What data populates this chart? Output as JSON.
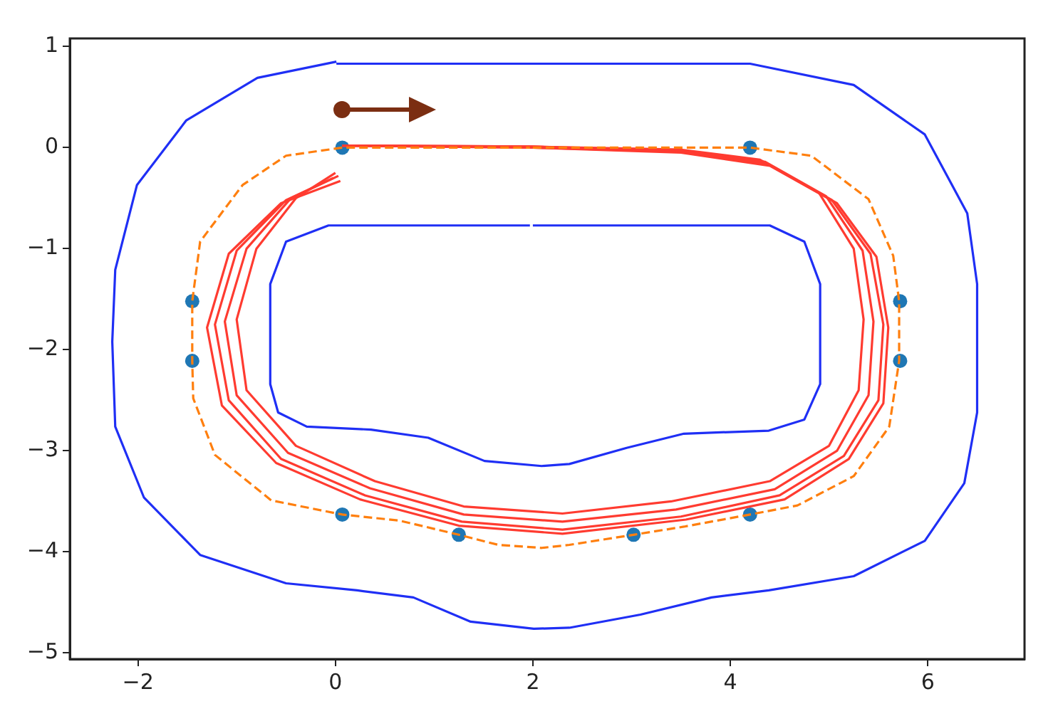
{
  "chart_data": {
    "type": "line",
    "xlim": [
      -2.69,
      6.98
    ],
    "ylim": [
      -5.06,
      1.08
    ],
    "xticks": [
      {
        "value": -2,
        "label": "−2"
      },
      0,
      2,
      4,
      6
    ],
    "yticks": [
      1,
      0,
      {
        "value": -1,
        "label": "−1"
      },
      {
        "value": -2,
        "label": "−2"
      },
      {
        "value": -3,
        "label": "−3"
      },
      {
        "value": -4,
        "label": "−4"
      },
      {
        "value": -5,
        "label": "−5"
      }
    ],
    "grid": false,
    "legend": false,
    "series": [
      {
        "type": "line",
        "color": "#1f2ff5",
        "marker": "none",
        "line_style": "solid",
        "x": [
          0.01,
          4.2,
          5.25,
          5.97,
          6.4,
          6.5,
          6.5,
          6.37,
          5.97,
          5.25,
          4.39,
          3.81,
          3.09,
          2.37,
          2.01,
          1.37,
          0.79,
          0.22,
          -0.5,
          -1.37,
          -1.94,
          -2.23,
          -2.26,
          -2.23,
          -2.01,
          -1.51,
          -0.79,
          0.01
        ],
        "values": [
          0.83,
          0.83,
          0.62,
          0.13,
          -0.65,
          -1.35,
          -2.62,
          -3.32,
          -3.89,
          -4.24,
          -4.38,
          -4.45,
          -4.62,
          -4.75,
          -4.76,
          -4.69,
          -4.45,
          -4.38,
          -4.31,
          -4.03,
          -3.46,
          -2.76,
          -1.92,
          -1.21,
          -0.37,
          0.27,
          0.69,
          0.85
        ]
      },
      {
        "type": "line",
        "color": "#1f2ff5",
        "marker": "none",
        "line_style": "solid",
        "x": [
          2.0,
          4.4,
          4.75,
          4.91,
          4.91,
          4.75,
          4.39,
          3.53,
          2.95,
          2.37,
          2.09,
          1.51,
          0.94,
          0.36,
          -0.29,
          -0.58,
          -0.66,
          -0.66,
          -0.5,
          -0.07,
          1.97
        ],
        "values": [
          -0.77,
          -0.77,
          -0.93,
          -1.35,
          -2.34,
          -2.69,
          -2.8,
          -2.83,
          -2.97,
          -3.13,
          -3.15,
          -3.1,
          -2.87,
          -2.79,
          -2.76,
          -2.62,
          -2.34,
          -1.35,
          -0.93,
          -0.77,
          -0.77
        ]
      },
      {
        "type": "line",
        "color": "#ff7f0e",
        "marker": "none",
        "line_style": "dashed",
        "x": [
          2.0,
          4.2,
          4.82,
          5.4,
          5.65,
          5.71,
          5.71,
          5.61,
          5.25,
          4.68,
          4.2,
          3.53,
          3.02,
          2.37,
          2.09,
          1.65,
          1.25,
          0.65,
          0.07,
          -0.65,
          -1.22,
          -1.44,
          -1.45,
          -1.45,
          -1.37,
          -0.94,
          -0.5,
          0.07,
          1.97
        ],
        "values": [
          0,
          0,
          -0.08,
          -0.51,
          -1.07,
          -1.52,
          -2.11,
          -2.76,
          -3.25,
          -3.54,
          -3.63,
          -3.75,
          -3.83,
          -3.93,
          -3.96,
          -3.93,
          -3.83,
          -3.69,
          -3.63,
          -3.49,
          -3.04,
          -2.48,
          -2.11,
          -1.52,
          -0.93,
          -0.37,
          -0.08,
          0,
          0
        ]
      },
      {
        "type": "line",
        "color": "#ff3b30",
        "marker": "none",
        "line_style": "solid",
        "x": [
          0.07,
          2.0,
          3.5,
          4.3,
          4.9,
          5.25,
          5.35,
          5.3,
          5.0,
          4.4,
          3.4,
          2.3,
          1.3,
          0.4,
          -0.4,
          -0.9,
          -1.0,
          -0.8,
          -0.4,
          0.0
        ],
        "values": [
          0.02,
          0.01,
          -0.02,
          -0.12,
          -0.45,
          -1.0,
          -1.7,
          -2.4,
          -2.95,
          -3.3,
          -3.5,
          -3.62,
          -3.55,
          -3.3,
          -2.95,
          -2.4,
          -1.7,
          -1.0,
          -0.5,
          -0.25
        ]
      },
      {
        "type": "line",
        "color": "#ff3b30",
        "marker": "none",
        "line_style": "solid",
        "x": [
          0.07,
          2.0,
          3.5,
          4.35,
          4.97,
          5.34,
          5.45,
          5.4,
          5.08,
          4.45,
          3.45,
          2.3,
          1.3,
          0.35,
          -0.48,
          -1.0,
          -1.12,
          -0.9,
          -0.45,
          0.03
        ],
        "values": [
          0.02,
          0.01,
          -0.03,
          -0.14,
          -0.48,
          -1.02,
          -1.72,
          -2.45,
          -3.0,
          -3.38,
          -3.58,
          -3.7,
          -3.63,
          -3.37,
          -3.02,
          -2.45,
          -1.72,
          -1.0,
          -0.5,
          -0.28
        ]
      },
      {
        "type": "line",
        "color": "#ff3b30",
        "marker": "none",
        "line_style": "solid",
        "x": [
          0.07,
          2.0,
          3.5,
          4.38,
          5.03,
          5.42,
          5.55,
          5.5,
          5.15,
          4.5,
          3.5,
          2.3,
          1.28,
          0.3,
          -0.55,
          -1.08,
          -1.22,
          -1.0,
          -0.5,
          -0.02
        ],
        "values": [
          0.02,
          0.0,
          -0.04,
          -0.16,
          -0.52,
          -1.05,
          -1.75,
          -2.5,
          -3.05,
          -3.44,
          -3.65,
          -3.78,
          -3.7,
          -3.44,
          -3.08,
          -2.5,
          -1.75,
          -1.02,
          -0.52,
          -0.3
        ]
      },
      {
        "type": "line",
        "color": "#ff3b30",
        "marker": "none",
        "line_style": "solid",
        "x": [
          0.07,
          2.0,
          3.5,
          4.4,
          5.08,
          5.48,
          5.6,
          5.55,
          5.2,
          4.55,
          3.55,
          2.3,
          1.25,
          0.25,
          -0.6,
          -1.15,
          -1.3,
          -1.08,
          -0.55,
          0.05
        ],
        "values": [
          0.02,
          0.0,
          -0.05,
          -0.18,
          -0.55,
          -1.08,
          -1.78,
          -2.53,
          -3.08,
          -3.48,
          -3.68,
          -3.82,
          -3.74,
          -3.48,
          -3.12,
          -2.55,
          -1.78,
          -1.05,
          -0.55,
          -0.33
        ]
      },
      {
        "type": "scatter",
        "color": "#1f77b4",
        "marker": "circle",
        "x": [
          0.07,
          4.2,
          5.72,
          5.72,
          4.2,
          3.02,
          1.25,
          0.07,
          -1.45,
          -1.45
        ],
        "values": [
          0,
          0,
          -1.52,
          -2.11,
          -3.63,
          -3.83,
          -3.83,
          -3.63,
          -2.11,
          -1.52
        ]
      }
    ]
  }
}
